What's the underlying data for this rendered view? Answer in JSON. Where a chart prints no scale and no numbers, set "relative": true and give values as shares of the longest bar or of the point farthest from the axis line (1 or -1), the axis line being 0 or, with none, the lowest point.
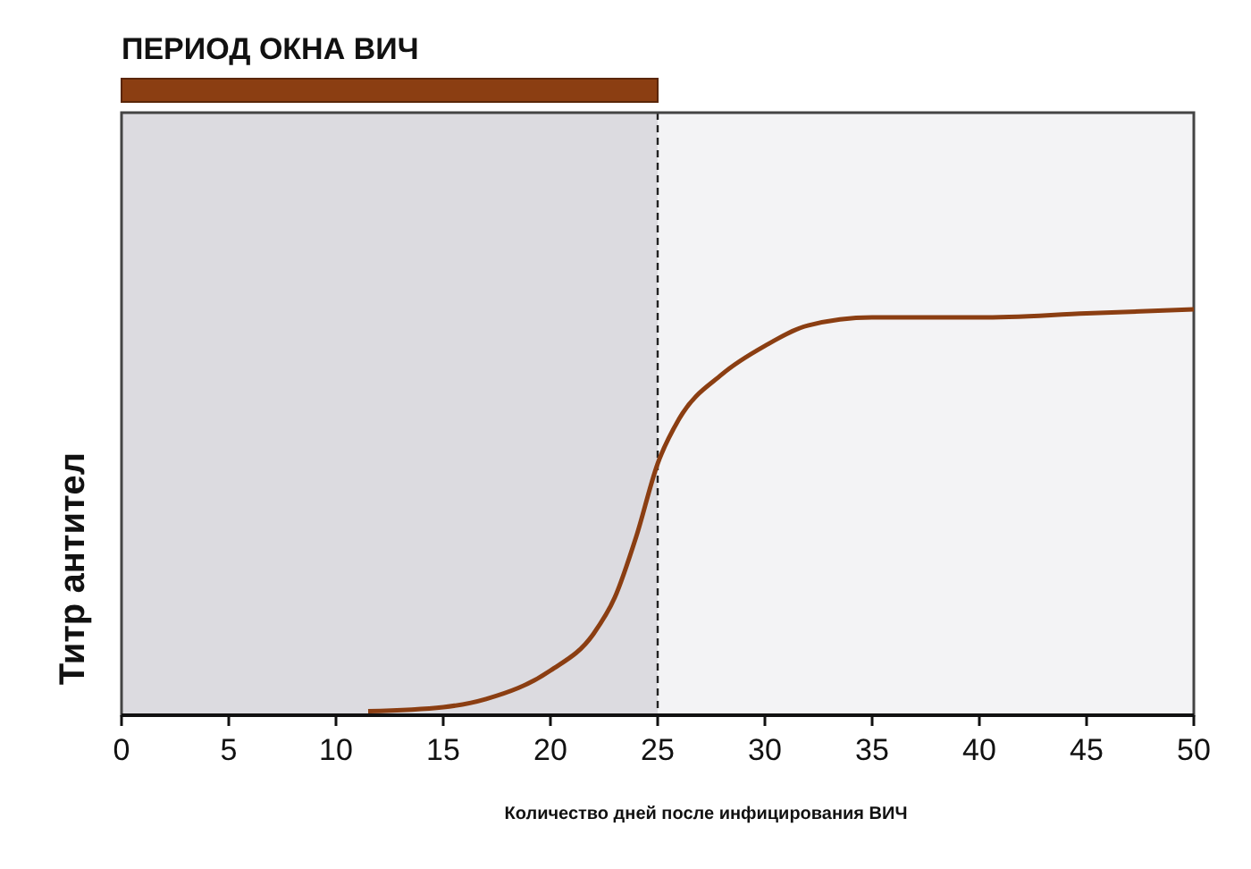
{
  "chart_data": {
    "type": "line",
    "xlabel": "Количество дней после инфицирования ВИЧ",
    "ylabel": "Титр антител",
    "relative": true,
    "xlim": [
      0,
      50
    ],
    "xticks": [
      0,
      5,
      10,
      15,
      20,
      25,
      30,
      35,
      40,
      45,
      50
    ],
    "grid": false,
    "line_style": "solid",
    "series": [
      {
        "color": "#8b3e12",
        "x": [
          11.5,
          15,
          17,
          20,
          22,
          23,
          24,
          25,
          26,
          28,
          30,
          32,
          35,
          40,
          45,
          50
        ],
        "values": [
          0.01,
          0.02,
          0.04,
          0.11,
          0.2,
          0.29,
          0.44,
          0.62,
          0.73,
          0.84,
          0.91,
          0.96,
          0.98,
          0.98,
          0.99,
          1
        ]
      }
    ],
    "bands": [
      {
        "axis": "x",
        "from": 0,
        "to": 25,
        "color": "#dcdbe0",
        "label": "ПЕРИОД ОКНА ВИЧ"
      }
    ],
    "ref_lines": [
      {
        "axis": "x",
        "value": 25,
        "line_style": "dashed",
        "color": "#222222"
      }
    ]
  }
}
